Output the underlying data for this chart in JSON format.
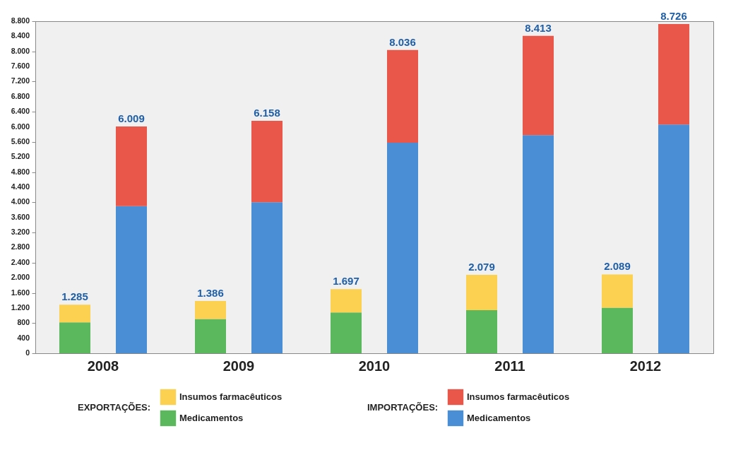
{
  "chart_data": [
    {
      "type": "bar",
      "stacked": true,
      "legend_title": "EXPORTAÇÕES:",
      "categories": [
        "2008",
        "2009",
        "2010",
        "2011",
        "2012"
      ],
      "series": [
        {
          "name": "Medicamentos",
          "color": "#5cb85c",
          "values": [
            820,
            910,
            1080,
            1140,
            1210
          ]
        },
        {
          "name": "Insumos farmacêuticos",
          "color": "#fcd050",
          "values": [
            465,
            476,
            617,
            939,
            879
          ]
        }
      ],
      "totals": [
        "1.285",
        "1.386",
        "1.697",
        "2.079",
        "2.089"
      ],
      "ylim": [
        0,
        8800
      ],
      "yticks": [
        0,
        400,
        800,
        {
          "value": 1200,
          "label": "1.200"
        },
        {
          "value": 1600,
          "label": "1.600"
        },
        {
          "value": 2000,
          "label": "2.000"
        },
        {
          "value": 2400,
          "label": "2.400"
        },
        {
          "value": 2800,
          "label": "2.800"
        },
        {
          "value": 3200,
          "label": "3.200"
        },
        {
          "value": 3600,
          "label": "3.600"
        },
        {
          "value": 4000,
          "label": "4.000"
        },
        {
          "value": 4400,
          "label": "4.400"
        },
        {
          "value": 4800,
          "label": "4.800"
        },
        {
          "value": 5200,
          "label": "5.200"
        },
        {
          "value": 5600,
          "label": "5.600"
        },
        {
          "value": 6000,
          "label": "6.000"
        },
        {
          "value": 6400,
          "label": "6.400"
        },
        {
          "value": 6800,
          "label": "6.800"
        },
        {
          "value": 7200,
          "label": "7.200"
        },
        {
          "value": 7600,
          "label": "7.600"
        },
        {
          "value": 8000,
          "label": "8.000"
        },
        {
          "value": 8400,
          "label": "8.400"
        },
        {
          "value": 8800,
          "label": "8.800"
        }
      ],
      "legend": "bottom"
    },
    {
      "type": "bar",
      "stacked": true,
      "legend_title": "IMPORTAÇÕES:",
      "categories": [
        "2008",
        "2009",
        "2010",
        "2011",
        "2012"
      ],
      "series": [
        {
          "name": "Medicamentos",
          "color": "#4a8fd6",
          "values": [
            3900,
            4000,
            5580,
            5780,
            6060
          ]
        },
        {
          "name": "Insumos farmacêuticos",
          "color": "#e8574a",
          "values": [
            2109,
            2158,
            2456,
            2633,
            2666
          ]
        }
      ],
      "totals": [
        "6.009",
        "6.158",
        "8.036",
        "8.413",
        "8.726"
      ],
      "ylim": [
        0,
        8800
      ],
      "tick_labels": false,
      "legend": "bottom"
    }
  ]
}
